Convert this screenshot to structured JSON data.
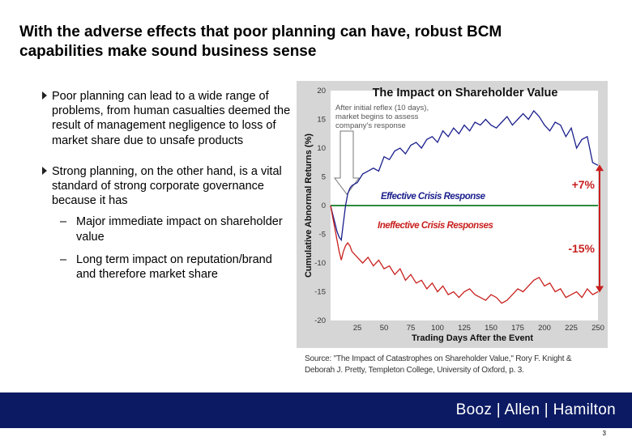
{
  "slide": {
    "title_line1": "With the adverse effects that poor planning can have, robust BCM",
    "title_line2": "capabilities make sound business sense",
    "bullets": [
      "Poor planning can lead to a wide range of problems, from human casualties deemed the result of management negligence to loss of market share due to unsafe products",
      "Strong planning, on the other hand, is a vital standard of strong corporate governance because it has"
    ],
    "sub_bullets": [
      "Major immediate impact on shareholder value",
      "Long term impact on reputation/brand and therefore market share"
    ],
    "sub_dash": "–",
    "source_line1": "Source: \"The Impact of Catastrophes on Shareholder Value,\" Rory F. Knight &",
    "source_line2": "Deborah J. Pretty, Templeton College, University of Oxford, p. 3.",
    "logo": "Booz | Allen | Hamilton",
    "page_number": "3"
  },
  "colors": {
    "effective": "#1a1f8c",
    "ineffective": "#c8201e",
    "zero_line": "#2e8b3e",
    "footer": "#0b1a63",
    "chart_bg": "#d6d6d6",
    "plot_bg": "#ffffff"
  },
  "chart_data": {
    "type": "line",
    "title": "The Impact on Shareholder Value",
    "xlabel": "Trading Days After the Event",
    "ylabel": "Cumulative Abnormal Returns (%)",
    "xlim": [
      0,
      250
    ],
    "ylim": [
      -20,
      20
    ],
    "x_ticks": [
      25,
      50,
      75,
      100,
      125,
      150,
      175,
      200,
      225,
      250
    ],
    "y_ticks": [
      20,
      15,
      10,
      5,
      0,
      -5,
      -10,
      -15,
      -20
    ],
    "annotation": "After initial reflex (10 days), market begins to assess company's response",
    "series": [
      {
        "name": "Effective Crisis Response",
        "end_label": "+7%",
        "x": [
          0,
          2,
          4,
          6,
          8,
          10,
          12,
          14,
          16,
          18,
          20,
          25,
          30,
          35,
          40,
          45,
          50,
          55,
          60,
          65,
          70,
          75,
          80,
          85,
          90,
          95,
          100,
          105,
          110,
          115,
          120,
          125,
          130,
          135,
          140,
          145,
          150,
          155,
          160,
          165,
          170,
          175,
          180,
          185,
          190,
          195,
          200,
          205,
          210,
          215,
          220,
          225,
          230,
          235,
          240,
          245,
          250
        ],
        "values": [
          0,
          -1.5,
          -3,
          -4.5,
          -5.5,
          -6,
          -3,
          0,
          2,
          3,
          3.5,
          4,
          5.5,
          6,
          6.5,
          6,
          8.5,
          8,
          9.5,
          10,
          9,
          10.5,
          11,
          10,
          11.5,
          12,
          11,
          13,
          12,
          13.5,
          12.5,
          14,
          13,
          14.5,
          14,
          15,
          14,
          13.5,
          14.5,
          15.5,
          14,
          15,
          16,
          15,
          16.5,
          15.5,
          14,
          13,
          14.5,
          14,
          12,
          13.5,
          10,
          11.5,
          12,
          7.5,
          7
        ]
      },
      {
        "name": "Ineffective Crisis Responses",
        "end_label": "-15%",
        "x": [
          0,
          2,
          4,
          6,
          8,
          10,
          12,
          14,
          16,
          18,
          20,
          25,
          30,
          35,
          40,
          45,
          50,
          55,
          60,
          65,
          70,
          75,
          80,
          85,
          90,
          95,
          100,
          105,
          110,
          115,
          120,
          125,
          130,
          135,
          140,
          145,
          150,
          155,
          160,
          165,
          170,
          175,
          180,
          185,
          190,
          195,
          200,
          205,
          210,
          215,
          220,
          225,
          230,
          235,
          240,
          245,
          250
        ],
        "values": [
          0,
          -2,
          -4,
          -6,
          -8,
          -9.5,
          -8,
          -7,
          -6.5,
          -7,
          -8,
          -9,
          -10,
          -9,
          -10.5,
          -9.5,
          -11,
          -10.5,
          -12,
          -11,
          -13,
          -12,
          -13.5,
          -13,
          -14.5,
          -13.5,
          -15,
          -14,
          -15.5,
          -15,
          -16,
          -15,
          -14.5,
          -15.5,
          -16,
          -16.5,
          -15.5,
          -16,
          -17,
          -16.5,
          -15.5,
          -14.5,
          -15,
          -14,
          -13,
          -12.5,
          -14,
          -13.5,
          -15,
          -14.5,
          -16,
          -15.5,
          -15,
          -16,
          -14.5,
          -15.5,
          -15
        ]
      }
    ]
  }
}
